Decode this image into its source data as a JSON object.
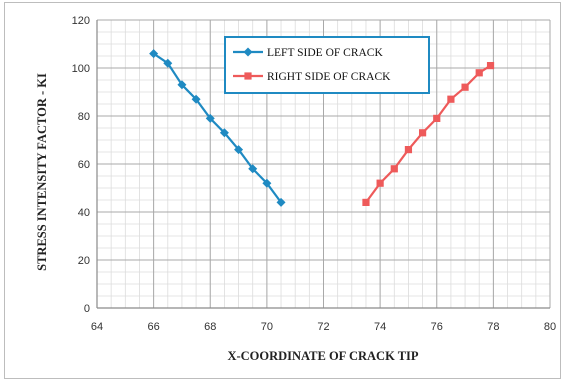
{
  "chart_data": {
    "type": "line",
    "title": "",
    "xlabel": "X-COORDINATE OF CRACK TIP",
    "ylabel": "STRESS INTENSITY FACTOR - KI",
    "xlim": [
      64,
      80
    ],
    "ylim": [
      0,
      120
    ],
    "x_ticks": [
      64,
      66,
      68,
      70,
      72,
      74,
      76,
      78,
      80
    ],
    "y_ticks": [
      0,
      20,
      40,
      60,
      80,
      100,
      120
    ],
    "grid": true,
    "legend_position": "top-center",
    "series": [
      {
        "name": "LEFT SIDE OF CRACK",
        "color": "#1f8ac2",
        "marker": "diamond",
        "x": [
          66.0,
          66.5,
          67.0,
          67.5,
          68.0,
          68.5,
          69.0,
          69.5,
          70.0,
          70.5
        ],
        "y": [
          106,
          102,
          93,
          87,
          79,
          73,
          66,
          58,
          52,
          44
        ]
      },
      {
        "name": "RIGHT SIDE OF CRACK",
        "color": "#ee5a5a",
        "marker": "square",
        "x": [
          73.5,
          74.0,
          74.5,
          75.0,
          75.5,
          76.0,
          76.5,
          77.0,
          77.5,
          77.9
        ],
        "y": [
          44,
          52,
          58,
          66,
          73,
          79,
          87,
          92,
          98,
          101
        ]
      }
    ]
  }
}
